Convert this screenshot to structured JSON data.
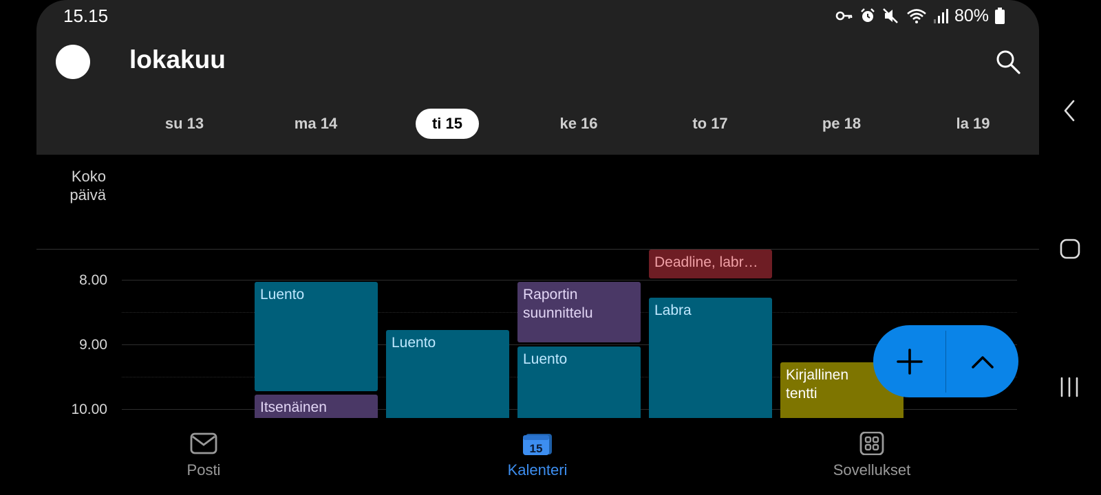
{
  "status_bar": {
    "time": "15.15",
    "battery": "80%",
    "icons": [
      "key-icon",
      "alarm-icon",
      "mute-icon",
      "wifi-icon",
      "signal-icon",
      "battery-icon"
    ]
  },
  "header": {
    "title": "lokakuu",
    "search_icon": "search-icon"
  },
  "week": {
    "days": [
      {
        "label": "su 13",
        "selected": false
      },
      {
        "label": "ma 14",
        "selected": false
      },
      {
        "label": "ti 15",
        "selected": true
      },
      {
        "label": "ke 16",
        "selected": false
      },
      {
        "label": "to 17",
        "selected": false
      },
      {
        "label": "pe 18",
        "selected": false
      },
      {
        "label": "la 19",
        "selected": false
      }
    ]
  },
  "allday": {
    "label_line1": "Koko",
    "label_line2": "päivä"
  },
  "hours": [
    "8.00",
    "9.00",
    "10.00"
  ],
  "events": [
    {
      "title": "Luento",
      "day": "ma 14",
      "color": "#005f7a"
    },
    {
      "title": "Itsenäinen",
      "day": "ma 14",
      "color": "#4a3866"
    },
    {
      "title": "Luento",
      "day": "ti 15",
      "color": "#005f7a"
    },
    {
      "title_line1": "Raportin",
      "title_line2": "suunnittelu",
      "day": "ke 16",
      "color": "#4a3866"
    },
    {
      "title": "Luento",
      "day": "ke 16",
      "color": "#005f7a"
    },
    {
      "title": "Deadline, labr…",
      "day": "to 17",
      "color": "#6e1d24"
    },
    {
      "title": "Labra",
      "day": "to 17",
      "color": "#005f7a"
    },
    {
      "title_line1": "Kirjallinen",
      "title_line2": "tentti",
      "day": "pe 18",
      "color": "#7e7500"
    }
  ],
  "fab": {
    "add_icon": "plus-icon",
    "collapse_icon": "chevron-up-icon",
    "color": "#0a84e8"
  },
  "bottom_nav": {
    "items": [
      {
        "label": "Posti",
        "icon": "mail-icon",
        "active": false
      },
      {
        "label": "Kalenteri",
        "icon": "calendar-icon",
        "badge": "15",
        "active": true
      },
      {
        "label": "Sovellukset",
        "icon": "apps-icon",
        "active": false
      }
    ]
  },
  "system_nav": [
    "back-icon",
    "home-icon",
    "recents-icon"
  ]
}
